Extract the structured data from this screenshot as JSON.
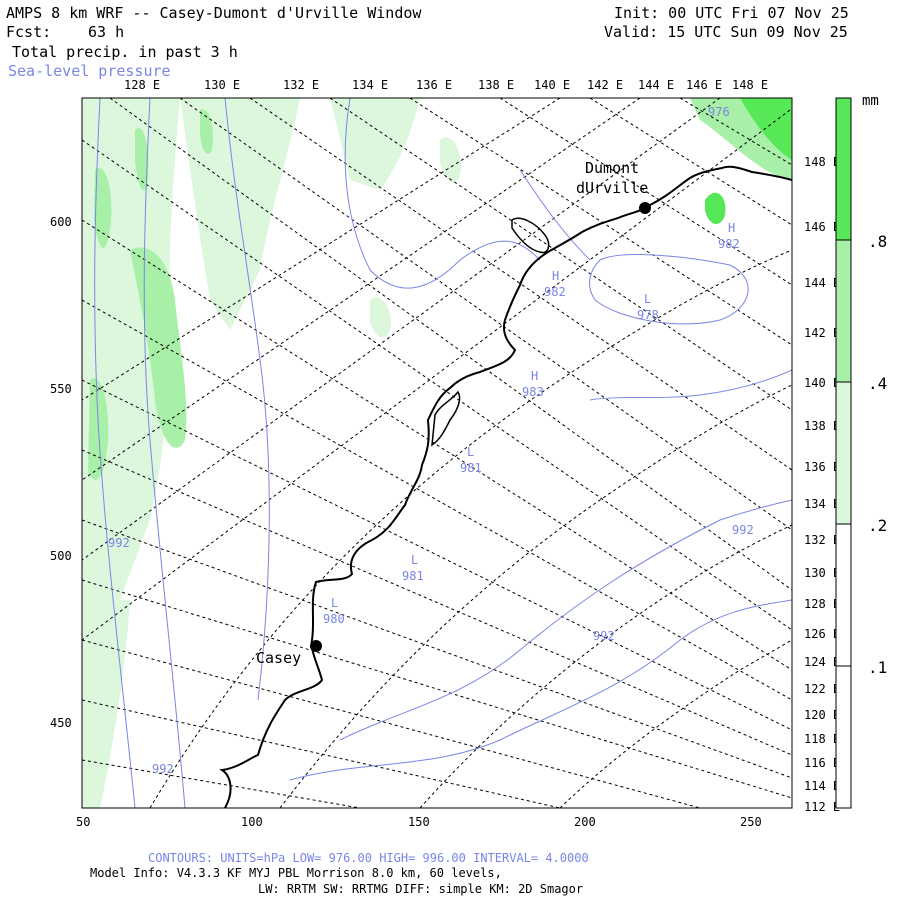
{
  "header": {
    "title": "AMPS 8 km WRF -- Casey-Dumont d'Urville Window",
    "fcst_label": "Fcst:",
    "fcst_value": "63 h",
    "init": "Init: 00 UTC Fri 07 Nov 25",
    "valid": "Valid: 15 UTC Sun 09 Nov 25",
    "field": "Total precip. in past 3 h",
    "overlay": "Sea-level pressure"
  },
  "top_lon_labels": [
    "128 E",
    "130 E",
    "132 E",
    "134 E",
    "136 E",
    "138 E",
    "140 E",
    "142 E",
    "144 E",
    "146 E",
    "148 E"
  ],
  "right_lon_labels": [
    "148 E",
    "146 E",
    "144 E",
    "142 E",
    "140 E",
    "138 E",
    "136 E",
    "134 E",
    "132 E",
    "130 E",
    "128 E",
    "126 E",
    "124 E",
    "122 E",
    "120 E",
    "118 E",
    "116 E",
    "114 E",
    "112 E"
  ],
  "y_axis_labels": [
    "600",
    "550",
    "500",
    "450"
  ],
  "x_axis_labels": [
    "50",
    "100",
    "150",
    "200",
    "250"
  ],
  "stations": [
    {
      "name": "Casey"
    },
    {
      "name_line1": "Dumont",
      "name_line2": "dUrville"
    }
  ],
  "pressure_labels": [
    "976",
    "982",
    "982",
    "978",
    "983",
    "981",
    "981",
    "980",
    "992",
    "992",
    "992",
    "992"
  ],
  "pressure_markers": [
    "H",
    "H",
    "L",
    "H",
    "L",
    "L",
    "L"
  ],
  "legend": {
    "unit": "mm",
    "ticks": [
      ".8",
      ".4",
      ".2",
      ".1"
    ],
    "colors": [
      "#56e856",
      "#a8efa8",
      "#dcf7dc",
      "#ffffff"
    ]
  },
  "footer": {
    "contours": "CONTOURS: UNITS=hPa LOW= 976.00 HIGH= 996.00 INTERVAL= 4.0000",
    "model_info": "Model Info: V4.3.3 KF MYJ PBL Morrison 8.0 km, 60 levels,",
    "physics": "LW: RRTM SW: RRTMG DIFF: simple KM: 2D Smagor"
  },
  "colors": {
    "contour": "#7a86e6",
    "precip_light": "#dcf7dc",
    "precip_mid": "#a8efa8",
    "precip_heavy": "#56e856"
  }
}
